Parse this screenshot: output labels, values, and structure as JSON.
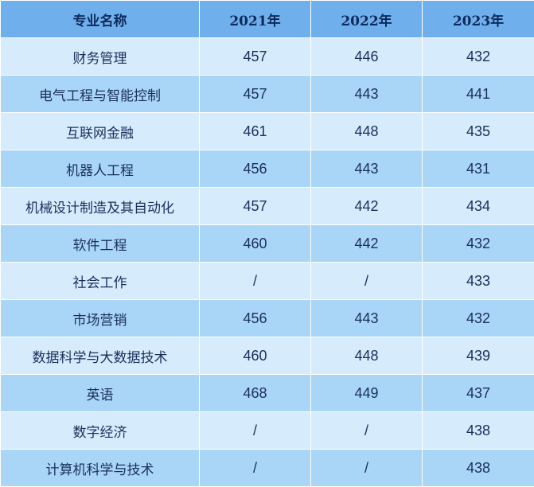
{
  "table": {
    "headers": [
      "专业名称",
      "2021年",
      "2022年",
      "2023年"
    ],
    "rows": [
      [
        "财务管理",
        "457",
        "446",
        "432"
      ],
      [
        "电气工程与智能控制",
        "457",
        "443",
        "441"
      ],
      [
        "互联网金融",
        "461",
        "448",
        "435"
      ],
      [
        "机器人工程",
        "456",
        "443",
        "431"
      ],
      [
        "机械设计制造及其自动化",
        "457",
        "442",
        "434"
      ],
      [
        "软件工程",
        "460",
        "442",
        "432"
      ],
      [
        "社会工作",
        "/",
        "/",
        "433"
      ],
      [
        "市场营销",
        "456",
        "443",
        "432"
      ],
      [
        "数据科学与大数据技术",
        "460",
        "448",
        "439"
      ],
      [
        "英语",
        "468",
        "449",
        "437"
      ],
      [
        "数字经济",
        "/",
        "/",
        "438"
      ],
      [
        "计算机科学与技术",
        "/",
        "/",
        "438"
      ]
    ]
  },
  "colors": {
    "header_bg": "#6fb0ec",
    "row_light": "#d6ecfc",
    "row_dark": "#a9d6f6",
    "text": "#1a2f5c"
  }
}
